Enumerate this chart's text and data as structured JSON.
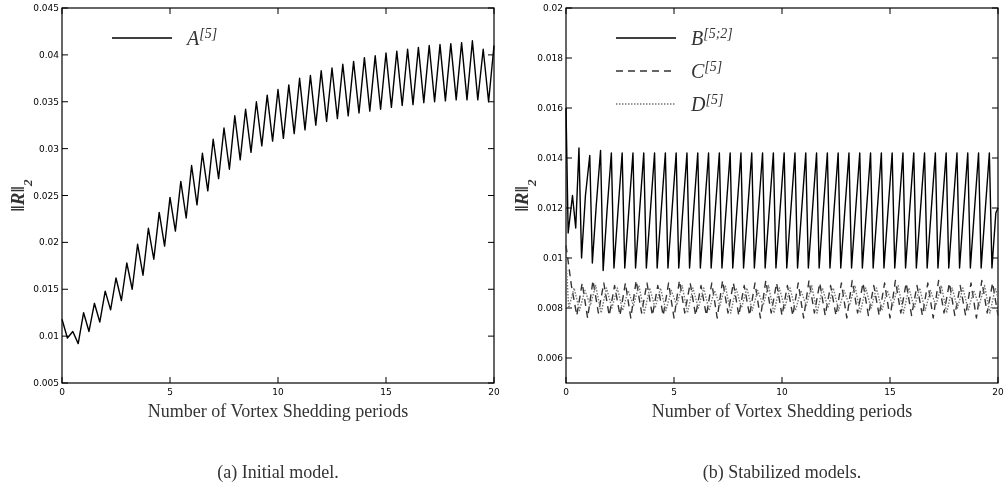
{
  "chart_data": [
    {
      "type": "line",
      "xlabel": "Number of Vortex Shedding periods",
      "ylabel": "‖R‖$_{2}$",
      "annotations": [
        "(a) Initial model."
      ],
      "xlim": [
        0,
        20
      ],
      "xticks": [
        0,
        5,
        10,
        15,
        20
      ],
      "ylim": [
        0.005,
        0.045
      ],
      "yticks": [
        0.005,
        0.01,
        0.015,
        0.02,
        0.025,
        0.03,
        0.035,
        0.04,
        0.045
      ],
      "legend": "top left",
      "series": [
        {
          "name": "A$^{[5]}$",
          "color": "#000000",
          "line_style": "solid",
          "x": [
            0,
            0.25,
            0.5,
            0.75,
            1,
            1.25,
            1.5,
            1.75,
            2,
            2.25,
            2.5,
            2.75,
            3,
            3.25,
            3.5,
            3.75,
            4,
            4.25,
            4.5,
            4.75,
            5,
            5.25,
            5.5,
            5.75,
            6,
            6.25,
            6.5,
            6.75,
            7,
            7.25,
            7.5,
            7.75,
            8,
            8.25,
            8.5,
            8.75,
            9,
            9.25,
            9.5,
            9.75,
            10,
            10.25,
            10.5,
            10.75,
            11,
            11.25,
            11.5,
            11.75,
            12,
            12.25,
            12.5,
            12.75,
            13,
            13.25,
            13.5,
            13.75,
            14,
            14.25,
            14.5,
            14.75,
            15,
            15.25,
            15.5,
            15.75,
            16,
            16.25,
            16.5,
            16.75,
            17,
            17.25,
            17.5,
            17.75,
            18,
            18.25,
            18.5,
            18.75,
            19,
            19.25,
            19.5,
            19.75,
            20
          ],
          "values": [
            0.0118,
            0.0098,
            0.0105,
            0.0092,
            0.0125,
            0.0105,
            0.0135,
            0.0115,
            0.0148,
            0.0128,
            0.0162,
            0.0138,
            0.0178,
            0.015,
            0.0198,
            0.0165,
            0.0215,
            0.0182,
            0.0232,
            0.0196,
            0.0248,
            0.0212,
            0.0265,
            0.0226,
            0.0282,
            0.024,
            0.0295,
            0.0255,
            0.031,
            0.0268,
            0.0322,
            0.0278,
            0.0335,
            0.0288,
            0.0342,
            0.0296,
            0.035,
            0.0303,
            0.0357,
            0.0308,
            0.0363,
            0.0311,
            0.0368,
            0.0316,
            0.0375,
            0.032,
            0.0378,
            0.0325,
            0.0383,
            0.0329,
            0.0386,
            0.0332,
            0.039,
            0.0335,
            0.0393,
            0.0338,
            0.0397,
            0.034,
            0.0399,
            0.0342,
            0.0402,
            0.0344,
            0.0404,
            0.0346,
            0.0406,
            0.0347,
            0.0408,
            0.0349,
            0.041,
            0.035,
            0.0411,
            0.0351,
            0.0412,
            0.0352,
            0.0413,
            0.0352,
            0.0415,
            0.0352,
            0.0406,
            0.035,
            0.041
          ]
        }
      ]
    },
    {
      "type": "line",
      "xlabel": "Number of Vortex Shedding periods",
      "ylabel": "‖R‖$_{2}$",
      "annotations": [
        "(b) Stabilized models."
      ],
      "xlim": [
        0,
        20
      ],
      "xticks": [
        0,
        5,
        10,
        15,
        20
      ],
      "ylim": [
        0.005,
        0.02
      ],
      "yticks": [
        0.006,
        0.008,
        0.01,
        0.012,
        0.014,
        0.016,
        0.018,
        0.02
      ],
      "legend": "top left",
      "series": [
        {
          "name": "B$^{[5;2]}$",
          "color": "#000000",
          "line_style": "solid",
          "x": [
            0,
            0.1,
            0.3,
            0.45,
            0.6,
            0.72,
            0.9,
            1.1,
            1.22,
            1.4,
            1.6,
            1.72,
            1.9,
            2.1,
            2.22,
            2.4,
            2.6,
            2.72,
            2.9,
            3.1,
            3.22,
            3.4,
            3.6,
            3.72,
            3.9,
            4.1,
            4.22,
            4.4,
            4.6,
            4.72,
            4.9,
            5.1,
            5.22,
            5.4,
            5.6,
            5.72,
            5.9,
            6.1,
            6.22,
            6.4,
            6.6,
            6.72,
            6.9,
            7.1,
            7.22,
            7.4,
            7.6,
            7.72,
            7.9,
            8.1,
            8.22,
            8.4,
            8.6,
            8.72,
            8.9,
            9.1,
            9.22,
            9.4,
            9.6,
            9.72,
            9.9,
            10.1,
            10.22,
            10.4,
            10.6,
            10.72,
            10.9,
            11.1,
            11.22,
            11.4,
            11.6,
            11.72,
            11.9,
            12.1,
            12.22,
            12.4,
            12.6,
            12.72,
            12.9,
            13.1,
            13.22,
            13.4,
            13.6,
            13.72,
            13.9,
            14.1,
            14.22,
            14.4,
            14.6,
            14.72,
            14.9,
            15.1,
            15.22,
            15.4,
            15.6,
            15.72,
            15.9,
            16.1,
            16.22,
            16.4,
            16.6,
            16.72,
            16.9,
            17.1,
            17.22,
            17.4,
            17.6,
            17.72,
            17.9,
            18.1,
            18.22,
            18.4,
            18.6,
            18.72,
            18.9,
            19.1,
            19.22,
            19.4,
            19.6,
            19.72,
            19.9,
            20
          ],
          "values": [
            0.016,
            0.011,
            0.0125,
            0.0112,
            0.0144,
            0.01,
            0.0125,
            0.0141,
            0.0098,
            0.0121,
            0.0143,
            0.0095,
            0.0119,
            0.0142,
            0.0096,
            0.0118,
            0.0142,
            0.0096,
            0.0118,
            0.0142,
            0.0096,
            0.0118,
            0.0142,
            0.0096,
            0.0118,
            0.0142,
            0.0096,
            0.0118,
            0.0142,
            0.0096,
            0.0118,
            0.0142,
            0.0096,
            0.0118,
            0.0142,
            0.0096,
            0.0118,
            0.0142,
            0.0096,
            0.0118,
            0.0142,
            0.0096,
            0.0118,
            0.0142,
            0.0096,
            0.0118,
            0.0142,
            0.0096,
            0.0118,
            0.0142,
            0.0096,
            0.0118,
            0.0142,
            0.0096,
            0.0118,
            0.0142,
            0.0096,
            0.0118,
            0.0142,
            0.0096,
            0.0118,
            0.0142,
            0.0096,
            0.0118,
            0.0142,
            0.0096,
            0.0118,
            0.0142,
            0.0096,
            0.0118,
            0.0142,
            0.0096,
            0.0118,
            0.0142,
            0.0096,
            0.0118,
            0.0142,
            0.0096,
            0.0118,
            0.0142,
            0.0096,
            0.0118,
            0.0142,
            0.0096,
            0.0118,
            0.0142,
            0.0096,
            0.0118,
            0.0142,
            0.0096,
            0.0118,
            0.0142,
            0.0096,
            0.0118,
            0.0142,
            0.0096,
            0.0118,
            0.0142,
            0.0096,
            0.0118,
            0.0142,
            0.0096,
            0.0118,
            0.0142,
            0.0096,
            0.0118,
            0.0142,
            0.0096,
            0.0118,
            0.0142,
            0.0096,
            0.0118,
            0.0142,
            0.0096,
            0.0118,
            0.0142,
            0.0096,
            0.0118,
            0.0142,
            0.0096,
            0.0118,
            0.012
          ]
        },
        {
          "name": "C$^{[5]}$",
          "color": "#333333",
          "line_style": "dashed",
          "x": [
            0,
            0.25,
            0.5,
            0.75,
            1,
            1.25,
            1.5,
            1.75,
            2,
            2.25,
            2.5,
            2.75,
            3,
            3.25,
            3.5,
            3.75,
            4,
            4.25,
            4.5,
            4.75,
            5,
            5.25,
            5.5,
            5.75,
            6,
            6.25,
            6.5,
            6.75,
            7,
            7.25,
            7.5,
            7.75,
            8,
            8.25,
            8.5,
            8.75,
            9,
            9.25,
            9.5,
            9.75,
            10,
            10.25,
            10.5,
            10.75,
            11,
            11.25,
            11.5,
            11.75,
            12,
            12.25,
            12.5,
            12.75,
            13,
            13.25,
            13.5,
            13.75,
            14,
            14.25,
            14.5,
            14.75,
            15,
            15.25,
            15.5,
            15.75,
            16,
            16.25,
            16.5,
            16.75,
            17,
            17.25,
            17.5,
            17.75,
            18,
            18.25,
            18.5,
            18.75,
            19,
            19.25,
            19.5,
            19.75,
            20
          ],
          "values": [
            0.0105,
            0.0089,
            0.0077,
            0.009,
            0.0076,
            0.0091,
            0.0078,
            0.009,
            0.0077,
            0.0089,
            0.0077,
            0.009,
            0.0076,
            0.0091,
            0.0078,
            0.009,
            0.0077,
            0.0089,
            0.0077,
            0.009,
            0.0076,
            0.0091,
            0.0078,
            0.009,
            0.0077,
            0.0089,
            0.0077,
            0.009,
            0.0076,
            0.0091,
            0.0078,
            0.009,
            0.0077,
            0.0089,
            0.0077,
            0.009,
            0.0076,
            0.0091,
            0.0078,
            0.009,
            0.0077,
            0.0089,
            0.0077,
            0.009,
            0.0076,
            0.0091,
            0.0078,
            0.009,
            0.0077,
            0.0089,
            0.0077,
            0.009,
            0.0076,
            0.0091,
            0.0078,
            0.009,
            0.0077,
            0.0089,
            0.0077,
            0.009,
            0.0076,
            0.0091,
            0.0078,
            0.009,
            0.0077,
            0.0089,
            0.0077,
            0.009,
            0.0076,
            0.0091,
            0.0078,
            0.009,
            0.0077,
            0.0089,
            0.0077,
            0.009,
            0.0076,
            0.0091,
            0.0078,
            0.009,
            0.0077
          ]
        },
        {
          "name": "D$^{[5]}$",
          "color": "#777777",
          "line_style": "dotted",
          "x": [
            0,
            0.125,
            0.375,
            0.625,
            0.875,
            1.125,
            1.375,
            1.625,
            1.875,
            2.125,
            2.375,
            2.625,
            2.875,
            3.125,
            3.375,
            3.625,
            3.875,
            4.125,
            4.375,
            4.625,
            4.875,
            5.125,
            5.375,
            5.625,
            5.875,
            6.125,
            6.375,
            6.625,
            6.875,
            7.125,
            7.375,
            7.625,
            7.875,
            8.125,
            8.375,
            8.625,
            8.875,
            9.125,
            9.375,
            9.625,
            9.875,
            10.125,
            10.375,
            10.625,
            10.875,
            11.125,
            11.375,
            11.625,
            11.875,
            12.125,
            12.375,
            12.625,
            12.875,
            13.125,
            13.375,
            13.625,
            13.875,
            14.125,
            14.375,
            14.625,
            14.875,
            15.125,
            15.375,
            15.625,
            15.875,
            16.125,
            16.375,
            16.625,
            16.875,
            17.125,
            17.375,
            17.625,
            17.875,
            18.125,
            18.375,
            18.625,
            18.875,
            19.125,
            19.375,
            19.625,
            19.875,
            20
          ],
          "values": [
            0.01,
            0.008,
            0.0088,
            0.0079,
            0.0087,
            0.0081,
            0.0089,
            0.0078,
            0.0088,
            0.008,
            0.0088,
            0.0079,
            0.0087,
            0.0081,
            0.0089,
            0.0078,
            0.0088,
            0.008,
            0.0088,
            0.0079,
            0.0087,
            0.0081,
            0.0089,
            0.0078,
            0.0088,
            0.008,
            0.0088,
            0.0079,
            0.0087,
            0.0081,
            0.0089,
            0.0078,
            0.0088,
            0.008,
            0.0088,
            0.0079,
            0.0087,
            0.0081,
            0.0089,
            0.0078,
            0.0088,
            0.008,
            0.0088,
            0.0079,
            0.0087,
            0.0081,
            0.0089,
            0.0078,
            0.0088,
            0.008,
            0.0088,
            0.0079,
            0.0087,
            0.0081,
            0.0089,
            0.0078,
            0.0088,
            0.008,
            0.0088,
            0.0079,
            0.0087,
            0.0081,
            0.0089,
            0.0078,
            0.0088,
            0.008,
            0.0088,
            0.0079,
            0.0087,
            0.0081,
            0.0089,
            0.0078,
            0.0088,
            0.008,
            0.0088,
            0.0079,
            0.0087,
            0.0081,
            0.0089,
            0.0078,
            0.0088,
            0.0084
          ]
        }
      ]
    }
  ]
}
